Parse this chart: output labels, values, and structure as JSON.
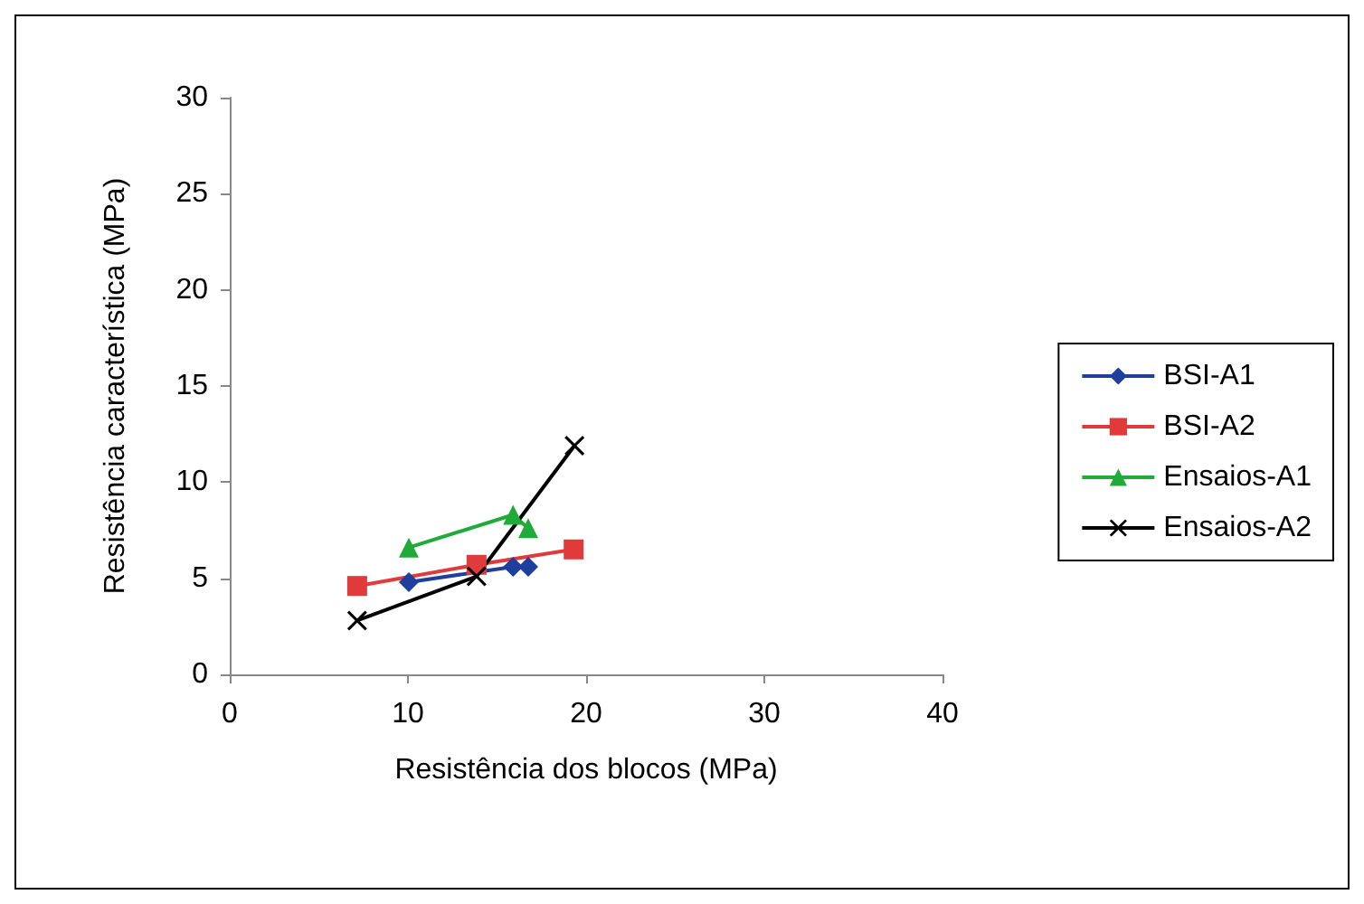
{
  "chart_data": {
    "type": "line",
    "xlabel": "Resistência dos blocos (MPa)",
    "ylabel": "Resistência característica (MPa)",
    "xlim": [
      0,
      40
    ],
    "xticks": [
      0,
      10,
      20,
      30,
      40
    ],
    "ylim": [
      0,
      30
    ],
    "yticks": [
      0,
      5,
      10,
      15,
      20,
      25,
      30
    ],
    "grid": false,
    "legend": "right",
    "series": [
      {
        "name": "BSI-A1",
        "color": "#1f3f9f",
        "marker": "diamond",
        "x": [
          10.05,
          15.9,
          16.75
        ],
        "values": [
          4.8,
          5.6,
          5.6
        ]
      },
      {
        "name": "BSI-A2",
        "color": "#e03a3a",
        "marker": "square",
        "x": [
          7.15,
          13.85,
          19.3
        ],
        "values": [
          4.6,
          5.7,
          6.5
        ]
      },
      {
        "name": "Ensaios-A1",
        "color": "#1faa3a",
        "marker": "triangle",
        "x": [
          10.05,
          15.9,
          16.75
        ],
        "values": [
          6.6,
          8.3,
          7.6
        ]
      },
      {
        "name": "Ensaios-A2",
        "color": "#000000",
        "marker": "cross",
        "x": [
          7.15,
          13.85,
          19.35
        ],
        "values": [
          2.8,
          5.1,
          11.9
        ]
      }
    ]
  }
}
